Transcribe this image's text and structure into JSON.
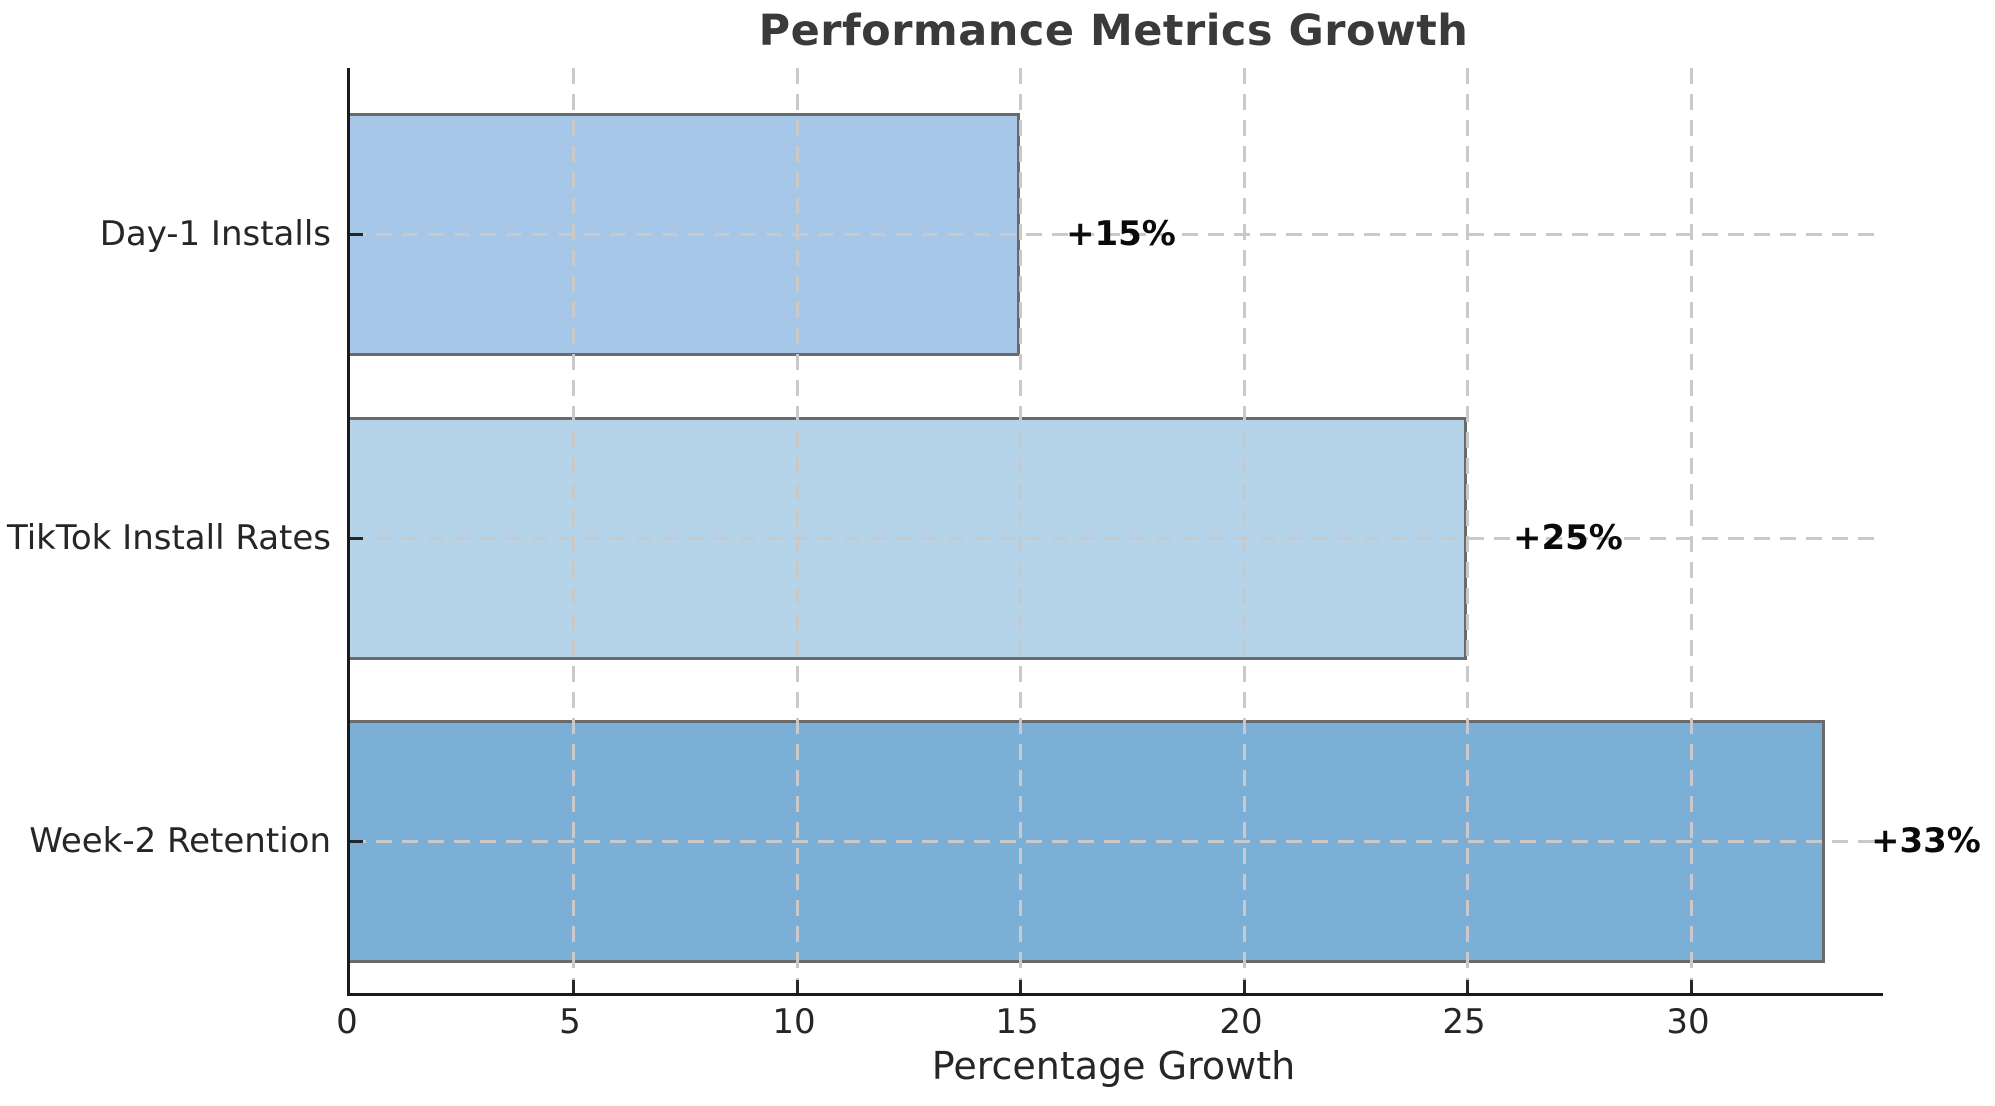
{
  "title": "Performance Metrics Growth",
  "chart_data": {
    "type": "bar",
    "orientation": "horizontal",
    "title": "Performance Metrics Growth",
    "xlabel": "Percentage Growth",
    "ylabel": "",
    "categories": [
      "Day-1 Installs",
      "TikTok Install Rates",
      "Week-2 Retention"
    ],
    "values": [
      15,
      25,
      33
    ],
    "value_labels": [
      "+15%",
      "+25%",
      "+33%"
    ],
    "bar_colors": [
      "#a6c7e7",
      "#b5d3e9",
      "#7bafd5"
    ],
    "bar_edge_color": "#6a6a6a",
    "xlim": [
      0,
      34.3
    ],
    "xticks": [
      0,
      5,
      10,
      15,
      20,
      25,
      30
    ],
    "grid": "dashed",
    "grid_color": "#c9c9c9",
    "legend": "none",
    "title_color": "#3a3a3a",
    "text_color": "#262626"
  }
}
